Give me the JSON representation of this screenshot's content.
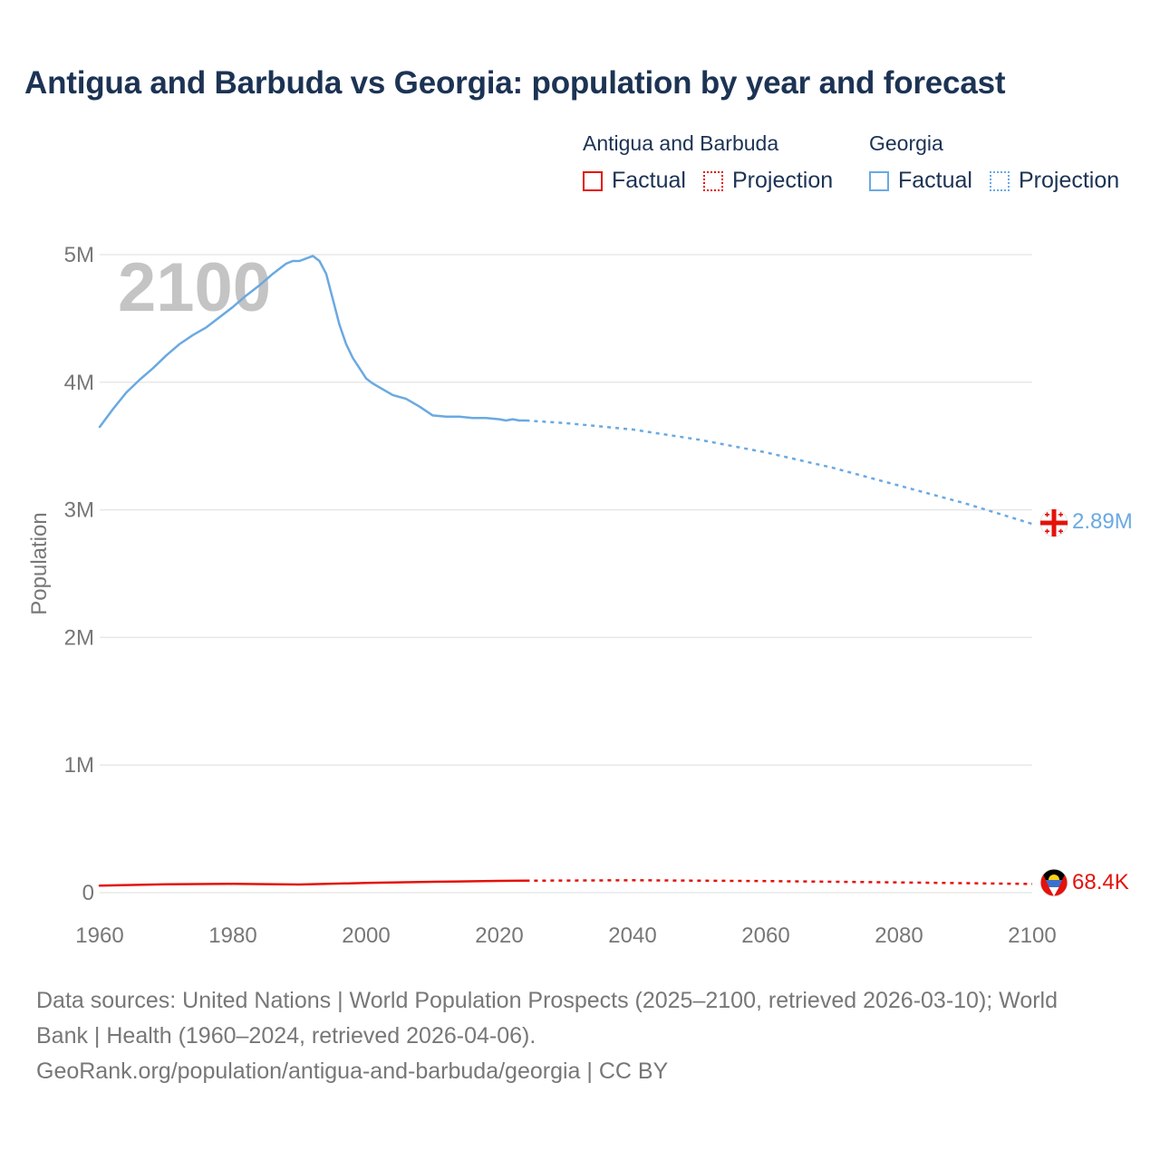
{
  "title": "Antigua and Barbuda vs Georgia: population by year and forecast",
  "legend": {
    "groups": [
      {
        "name": "Antigua and Barbuda",
        "color": "#e3120b",
        "items": [
          {
            "label": "Factual",
            "style": "solid"
          },
          {
            "label": "Projection",
            "style": "dotted"
          }
        ]
      },
      {
        "name": "Georgia",
        "color": "#6aa9e2",
        "items": [
          {
            "label": "Factual",
            "style": "solid"
          },
          {
            "label": "Projection",
            "style": "dotted"
          }
        ]
      }
    ]
  },
  "year_label": "2100",
  "end_labels": {
    "georgia": "2.89M",
    "antigua": "68.4K"
  },
  "flag_icons": {
    "georgia": "georgia-flag-icon",
    "antigua": "antigua-flag-icon"
  },
  "source": {
    "line1": "Data sources: United Nations | World Population Prospects (2025–2100, retrieved 2026-03-10); World",
    "line2": "Bank | Health (1960–2024, retrieved 2026-04-06).",
    "line3": "GeoRank.org/population/antigua-and-barbuda/georgia | CC BY"
  },
  "chart_data": {
    "type": "line",
    "title": "Antigua and Barbuda vs Georgia: population by year and forecast",
    "xlabel": "",
    "ylabel": "Population",
    "xlim": [
      1960,
      2100
    ],
    "ylim": [
      0,
      5000000
    ],
    "x_ticks": [
      1960,
      1980,
      2000,
      2020,
      2040,
      2060,
      2080,
      2100
    ],
    "x_tick_labels": [
      "1960",
      "1980",
      "2000",
      "2020",
      "2040",
      "2060",
      "2080",
      "2100"
    ],
    "y_ticks": [
      0,
      1000000,
      2000000,
      3000000,
      4000000,
      5000000
    ],
    "y_tick_labels": [
      "0",
      "1M",
      "2M",
      "3M",
      "4M",
      "5M"
    ],
    "grid": true,
    "series": [
      {
        "name": "Georgia",
        "segment": "Factual",
        "color": "#6aa9e2",
        "style": "solid",
        "x": [
          1960,
          1962,
          1964,
          1966,
          1968,
          1970,
          1972,
          1974,
          1976,
          1978,
          1980,
          1982,
          1984,
          1986,
          1988,
          1989,
          1990,
          1991,
          1992,
          1993,
          1994,
          1995,
          1996,
          1997,
          1998,
          1999,
          2000,
          2001,
          2002,
          2004,
          2006,
          2008,
          2010,
          2012,
          2014,
          2016,
          2018,
          2020,
          2021,
          2022,
          2023,
          2024
        ],
        "y": [
          3650000,
          3790000,
          3920000,
          4020000,
          4110000,
          4210000,
          4300000,
          4370000,
          4430000,
          4510000,
          4590000,
          4680000,
          4760000,
          4850000,
          4930000,
          4950000,
          4950000,
          4970000,
          4990000,
          4950000,
          4850000,
          4650000,
          4450000,
          4300000,
          4190000,
          4110000,
          4030000,
          3990000,
          3960000,
          3900000,
          3870000,
          3810000,
          3740000,
          3730000,
          3730000,
          3720000,
          3720000,
          3710000,
          3700000,
          3710000,
          3700000,
          3700000
        ]
      },
      {
        "name": "Georgia",
        "segment": "Projection",
        "color": "#6aa9e2",
        "style": "dotted",
        "x": [
          2024,
          2030,
          2040,
          2050,
          2060,
          2070,
          2080,
          2090,
          2100
        ],
        "y": [
          3700000,
          3680000,
          3630000,
          3550000,
          3450000,
          3330000,
          3190000,
          3050000,
          2890000
        ]
      },
      {
        "name": "Antigua and Barbuda",
        "segment": "Factual",
        "color": "#e3120b",
        "style": "solid",
        "x": [
          1960,
          1970,
          1980,
          1990,
          2000,
          2010,
          2020,
          2024
        ],
        "y": [
          55000,
          66000,
          69000,
          64000,
          76000,
          85000,
          92000,
          94000
        ]
      },
      {
        "name": "Antigua and Barbuda",
        "segment": "Projection",
        "color": "#e3120b",
        "style": "dotted",
        "x": [
          2024,
          2040,
          2060,
          2080,
          2100
        ],
        "y": [
          94000,
          97000,
          91000,
          80000,
          68400
        ]
      }
    ]
  }
}
